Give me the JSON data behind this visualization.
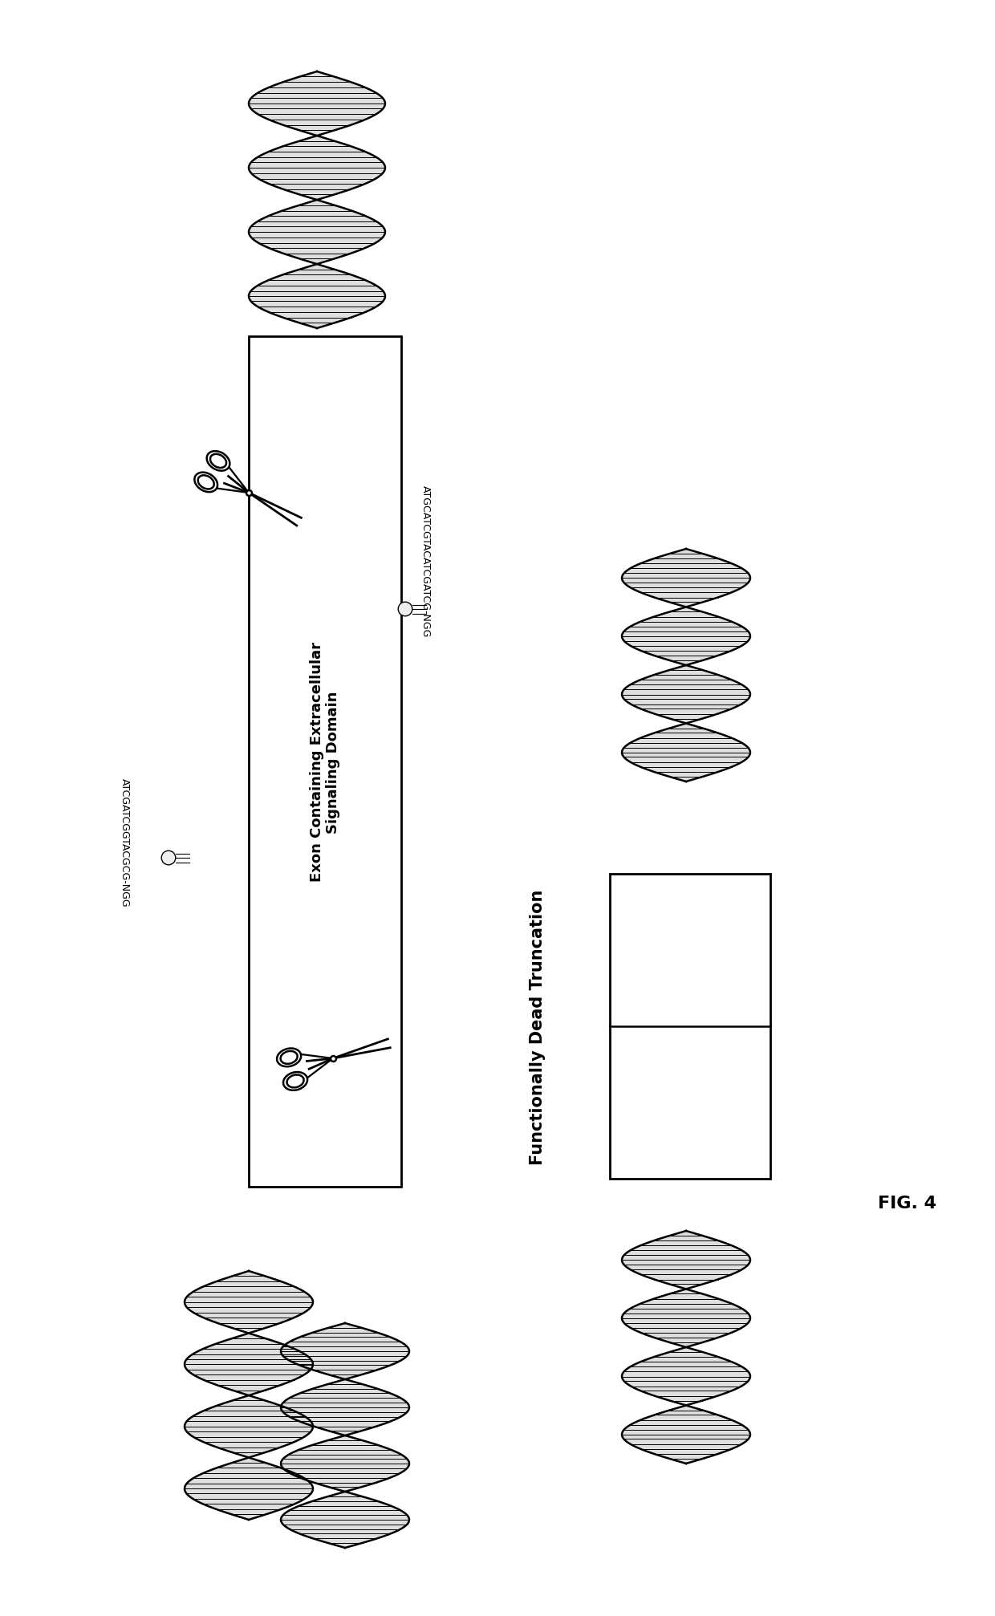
{
  "bg_color": "#ffffff",
  "fig_label": "FIG. 4",
  "exon_label_line1": "Exon Containing Extracellular",
  "exon_label_line2": "Signaling Domain",
  "sgRNA_top_seq": "ATGCATCGTACATCGATCG-NGG",
  "sgRNA_bottom_seq": "ATCGATCGGTACGCG-NGG",
  "truncation_label": "Functionally Dead Truncation"
}
